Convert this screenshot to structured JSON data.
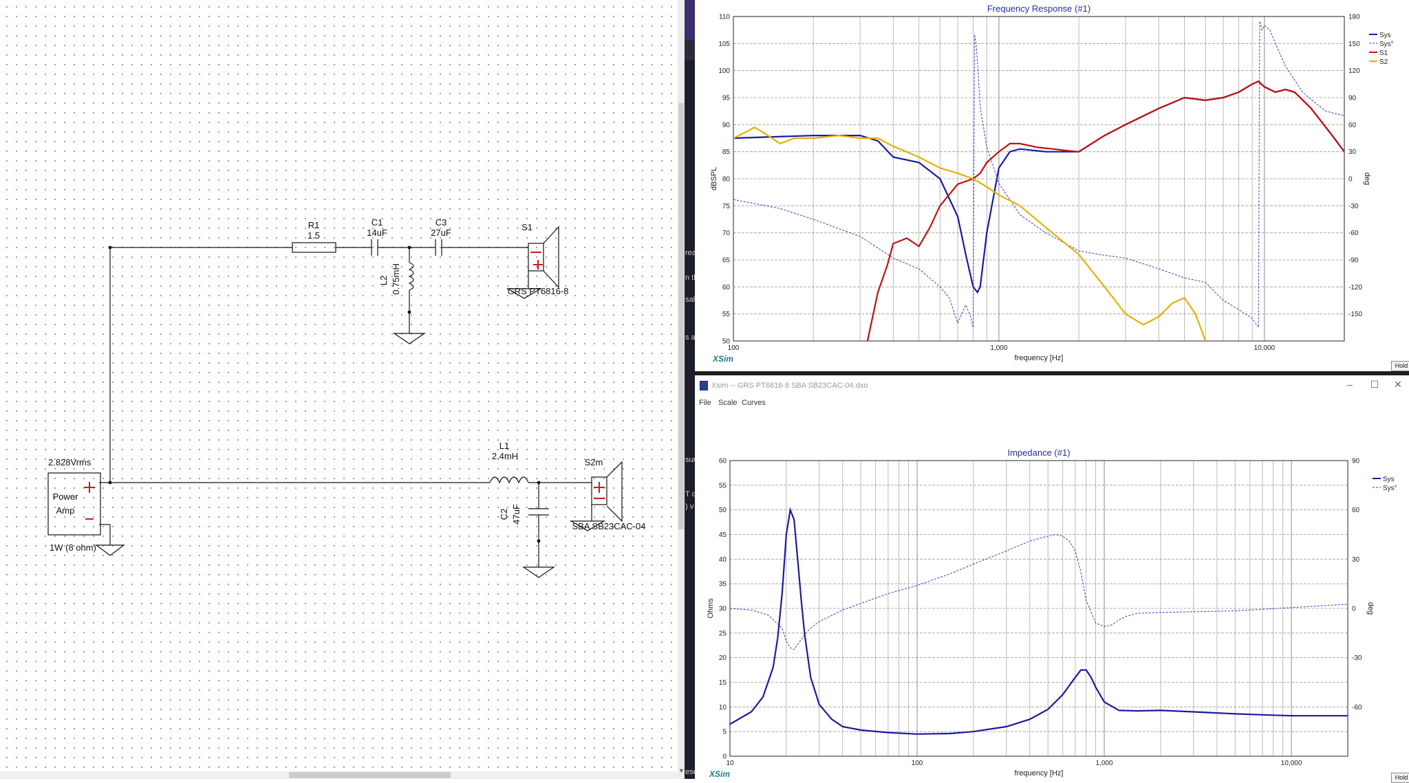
{
  "schematic": {
    "components": {
      "r1": {
        "name": "R1",
        "value": "1.5"
      },
      "c1": {
        "name": "C1",
        "value": "14uF"
      },
      "c3": {
        "name": "C3",
        "value": "27uF"
      },
      "l2": {
        "name": "L2",
        "value": "0.75mH"
      },
      "s1": {
        "name": "S1",
        "driver": "GRS PT6816-8"
      },
      "l1": {
        "name": "L1",
        "value": "2.4mH"
      },
      "c2": {
        "name": "C2",
        "value": "47uF"
      },
      "s2": {
        "name": "S2m",
        "driver": "SBA SB23CAC-04"
      },
      "amp": {
        "voltage": "2.828Vrms",
        "line1": "Power",
        "line2": "Amp",
        "power": "1W (8 ohm)"
      }
    }
  },
  "side_text": [
    "rea",
    "n tl",
    "sal",
    "s a",
    "sur",
    "T d",
    ") v",
    "ese"
  ],
  "frequency_window": {
    "title": "Frequency Response (#1)",
    "hold_label": "Hold",
    "xsim_label": "XSim",
    "chart_data": {
      "type": "line",
      "title": "Frequency Response (#1)",
      "xlabel": "frequency [Hz]",
      "ylabel": "dBSPL",
      "y2label": "deg",
      "x_scale": "log",
      "xlim": [
        100,
        20000
      ],
      "ylim": [
        50,
        110
      ],
      "y2lim": [
        -180,
        180
      ],
      "x_tick_labels": [
        "100",
        "1,000",
        "10,000"
      ],
      "y_tick_labels": [
        "110",
        "105",
        "100",
        "95",
        "90",
        "85",
        "80",
        "75",
        "70",
        "65",
        "60",
        "55",
        "50"
      ],
      "y2_tick_labels": [
        "180",
        "150",
        "120",
        "90",
        "60",
        "30",
        "0",
        "-30",
        "-60",
        "-90",
        "-120",
        "-150"
      ],
      "legend_position": "top-right",
      "grid": true,
      "series": [
        {
          "name": "Sys",
          "color": "#1a1aa0",
          "style": "solid",
          "axis": "left",
          "x": [
            100,
            200,
            300,
            350,
            400,
            500,
            600,
            700,
            750,
            800,
            830,
            850,
            900,
            1000,
            1100,
            1200,
            1500,
            2000,
            2500,
            3000,
            4000,
            5000,
            6000,
            7000,
            8000,
            9000,
            9500,
            10000,
            11000,
            12000,
            13000,
            15000,
            18000,
            20000
          ],
          "y": [
            87.5,
            88,
            88,
            87,
            84,
            83,
            80,
            73,
            66,
            60,
            59,
            60,
            70,
            82,
            85,
            85.5,
            85,
            85,
            88,
            90,
            93,
            95,
            94.5,
            95,
            96,
            97.5,
            98,
            97,
            96,
            96.5,
            96,
            93,
            88,
            85
          ]
        },
        {
          "name": "Sys°",
          "color": "#3a3ac0",
          "style": "dashed",
          "axis": "right",
          "x": [
            100,
            150,
            200,
            300,
            400,
            500,
            600,
            650,
            700,
            750,
            780,
            800,
            810,
            820,
            830,
            850,
            900,
            1000,
            1200,
            1500,
            2000,
            2500,
            3000,
            4000,
            5000,
            6000,
            7000,
            8000,
            9000,
            9500,
            9600,
            9800,
            10000,
            10500,
            11000,
            12000,
            14000,
            17000,
            20000
          ],
          "y": [
            -23,
            -33,
            -45,
            -64,
            -88,
            -100,
            -120,
            -132,
            -160,
            -140,
            -152,
            -165,
            160,
            150,
            130,
            80,
            35,
            -5,
            -40,
            -60,
            -80,
            -85,
            -88,
            -100,
            -110,
            -115,
            -135,
            -145,
            -155,
            -165,
            175,
            165,
            170,
            165,
            150,
            125,
            95,
            75,
            70
          ]
        },
        {
          "name": "S1",
          "color": "#c01010",
          "style": "solid",
          "axis": "left",
          "x": [
            320,
            350,
            380,
            400,
            450,
            500,
            550,
            600,
            700,
            800,
            850,
            900,
            1000,
            1100,
            1200,
            1400,
            1600,
            1800,
            2000,
            2500,
            3000,
            4000,
            5000,
            6000,
            7000,
            8000,
            9000,
            9500,
            10000,
            11000,
            12000,
            13000,
            15000,
            18000,
            20000
          ],
          "y": [
            50,
            59,
            64,
            68,
            69,
            67.5,
            71,
            75,
            79,
            80,
            81,
            83,
            85,
            86.5,
            86.5,
            85.8,
            85.5,
            85.2,
            85,
            88,
            90,
            93,
            95,
            94.5,
            95,
            96,
            97.5,
            98,
            97,
            96,
            96.5,
            96,
            93,
            88,
            85
          ]
        },
        {
          "name": "S2",
          "color": "#e8b000",
          "style": "solid",
          "axis": "left",
          "x": [
            100,
            110,
            120,
            130,
            150,
            170,
            200,
            250,
            300,
            350,
            400,
            500,
            600,
            700,
            800,
            900,
            1000,
            1200,
            1500,
            2000,
            2500,
            3000,
            3500,
            4000,
            4500,
            5000,
            5500,
            6000
          ],
          "y": [
            87.5,
            88.5,
            89.5,
            88.5,
            86.5,
            87.5,
            87.5,
            88,
            87.5,
            87.5,
            86,
            84,
            82,
            81,
            80,
            78.5,
            77,
            75,
            71,
            66,
            60,
            55,
            53,
            54.5,
            57,
            58,
            55,
            50
          ]
        }
      ]
    }
  },
  "impedance_window": {
    "window_title": "Xsim -- GRS PT6816-8 SBA SB23CAC-04.dxo",
    "window_controls": {
      "minimize": "–",
      "maximize": "☐",
      "close": "✕"
    },
    "menu": [
      "File",
      "Scale",
      "Curves"
    ],
    "hold_label": "Hold",
    "xsim_label": "XSim",
    "chart_data": {
      "type": "line",
      "title": "Impedance (#1)",
      "xlabel": "frequency [Hz]",
      "ylabel": "Ohms",
      "y2label": "deg",
      "x_scale": "log",
      "xlim": [
        10,
        20000
      ],
      "ylim": [
        0,
        60
      ],
      "y2lim": [
        -90,
        90
      ],
      "x_tick_labels": [
        "10",
        "100",
        "1,000",
        "10,000"
      ],
      "y_tick_labels": [
        "60",
        "55",
        "50",
        "45",
        "40",
        "35",
        "30",
        "25",
        "20",
        "15",
        "10",
        "5",
        "0"
      ],
      "y2_tick_labels": [
        "90",
        "60",
        "30",
        "0",
        "-30",
        "-60"
      ],
      "legend_position": "top-right",
      "grid": true,
      "series": [
        {
          "name": "Sys",
          "color": "#1a1aa0",
          "style": "solid",
          "axis": "left",
          "x": [
            10,
            13,
            15,
            17,
            18,
            19,
            20,
            21,
            22,
            23,
            24,
            25,
            27,
            30,
            35,
            40,
            50,
            70,
            100,
            150,
            200,
            300,
            400,
            500,
            600,
            700,
            750,
            800,
            850,
            900,
            1000,
            1200,
            1500,
            2000,
            3000,
            5000,
            7000,
            10000,
            15000,
            20000
          ],
          "y": [
            6.5,
            9,
            12,
            18,
            24,
            33,
            45,
            50,
            48,
            40,
            32,
            25,
            16,
            10.5,
            7.5,
            6,
            5.3,
            4.8,
            4.5,
            4.6,
            5,
            6,
            7.5,
            9.5,
            12.5,
            16,
            17.5,
            17.5,
            16,
            14,
            11,
            9.3,
            9.2,
            9.3,
            9,
            8.6,
            8.4,
            8.2,
            8.2,
            8.2
          ]
        },
        {
          "name": "Sys°",
          "color": "#3a3ac0",
          "style": "dashed",
          "axis": "right",
          "x": [
            10,
            13,
            16,
            19,
            20,
            21,
            22,
            23,
            24,
            25,
            27,
            30,
            40,
            50,
            70,
            100,
            150,
            200,
            300,
            400,
            500,
            550,
            600,
            650,
            700,
            750,
            800,
            900,
            1000,
            1100,
            1200,
            1300,
            1500,
            2000,
            3000,
            5000,
            10000,
            20000
          ],
          "y": [
            0,
            -1,
            -4,
            -12,
            -20,
            -24,
            -25,
            -22,
            -19,
            -16,
            -12,
            -8,
            -1,
            3,
            9,
            14,
            21,
            27,
            35,
            41,
            44,
            45,
            44,
            41,
            35,
            22,
            5,
            -9,
            -11,
            -10,
            -7,
            -5,
            -3,
            -2.5,
            -2,
            -1.5,
            0.5,
            2.5
          ]
        }
      ]
    }
  }
}
